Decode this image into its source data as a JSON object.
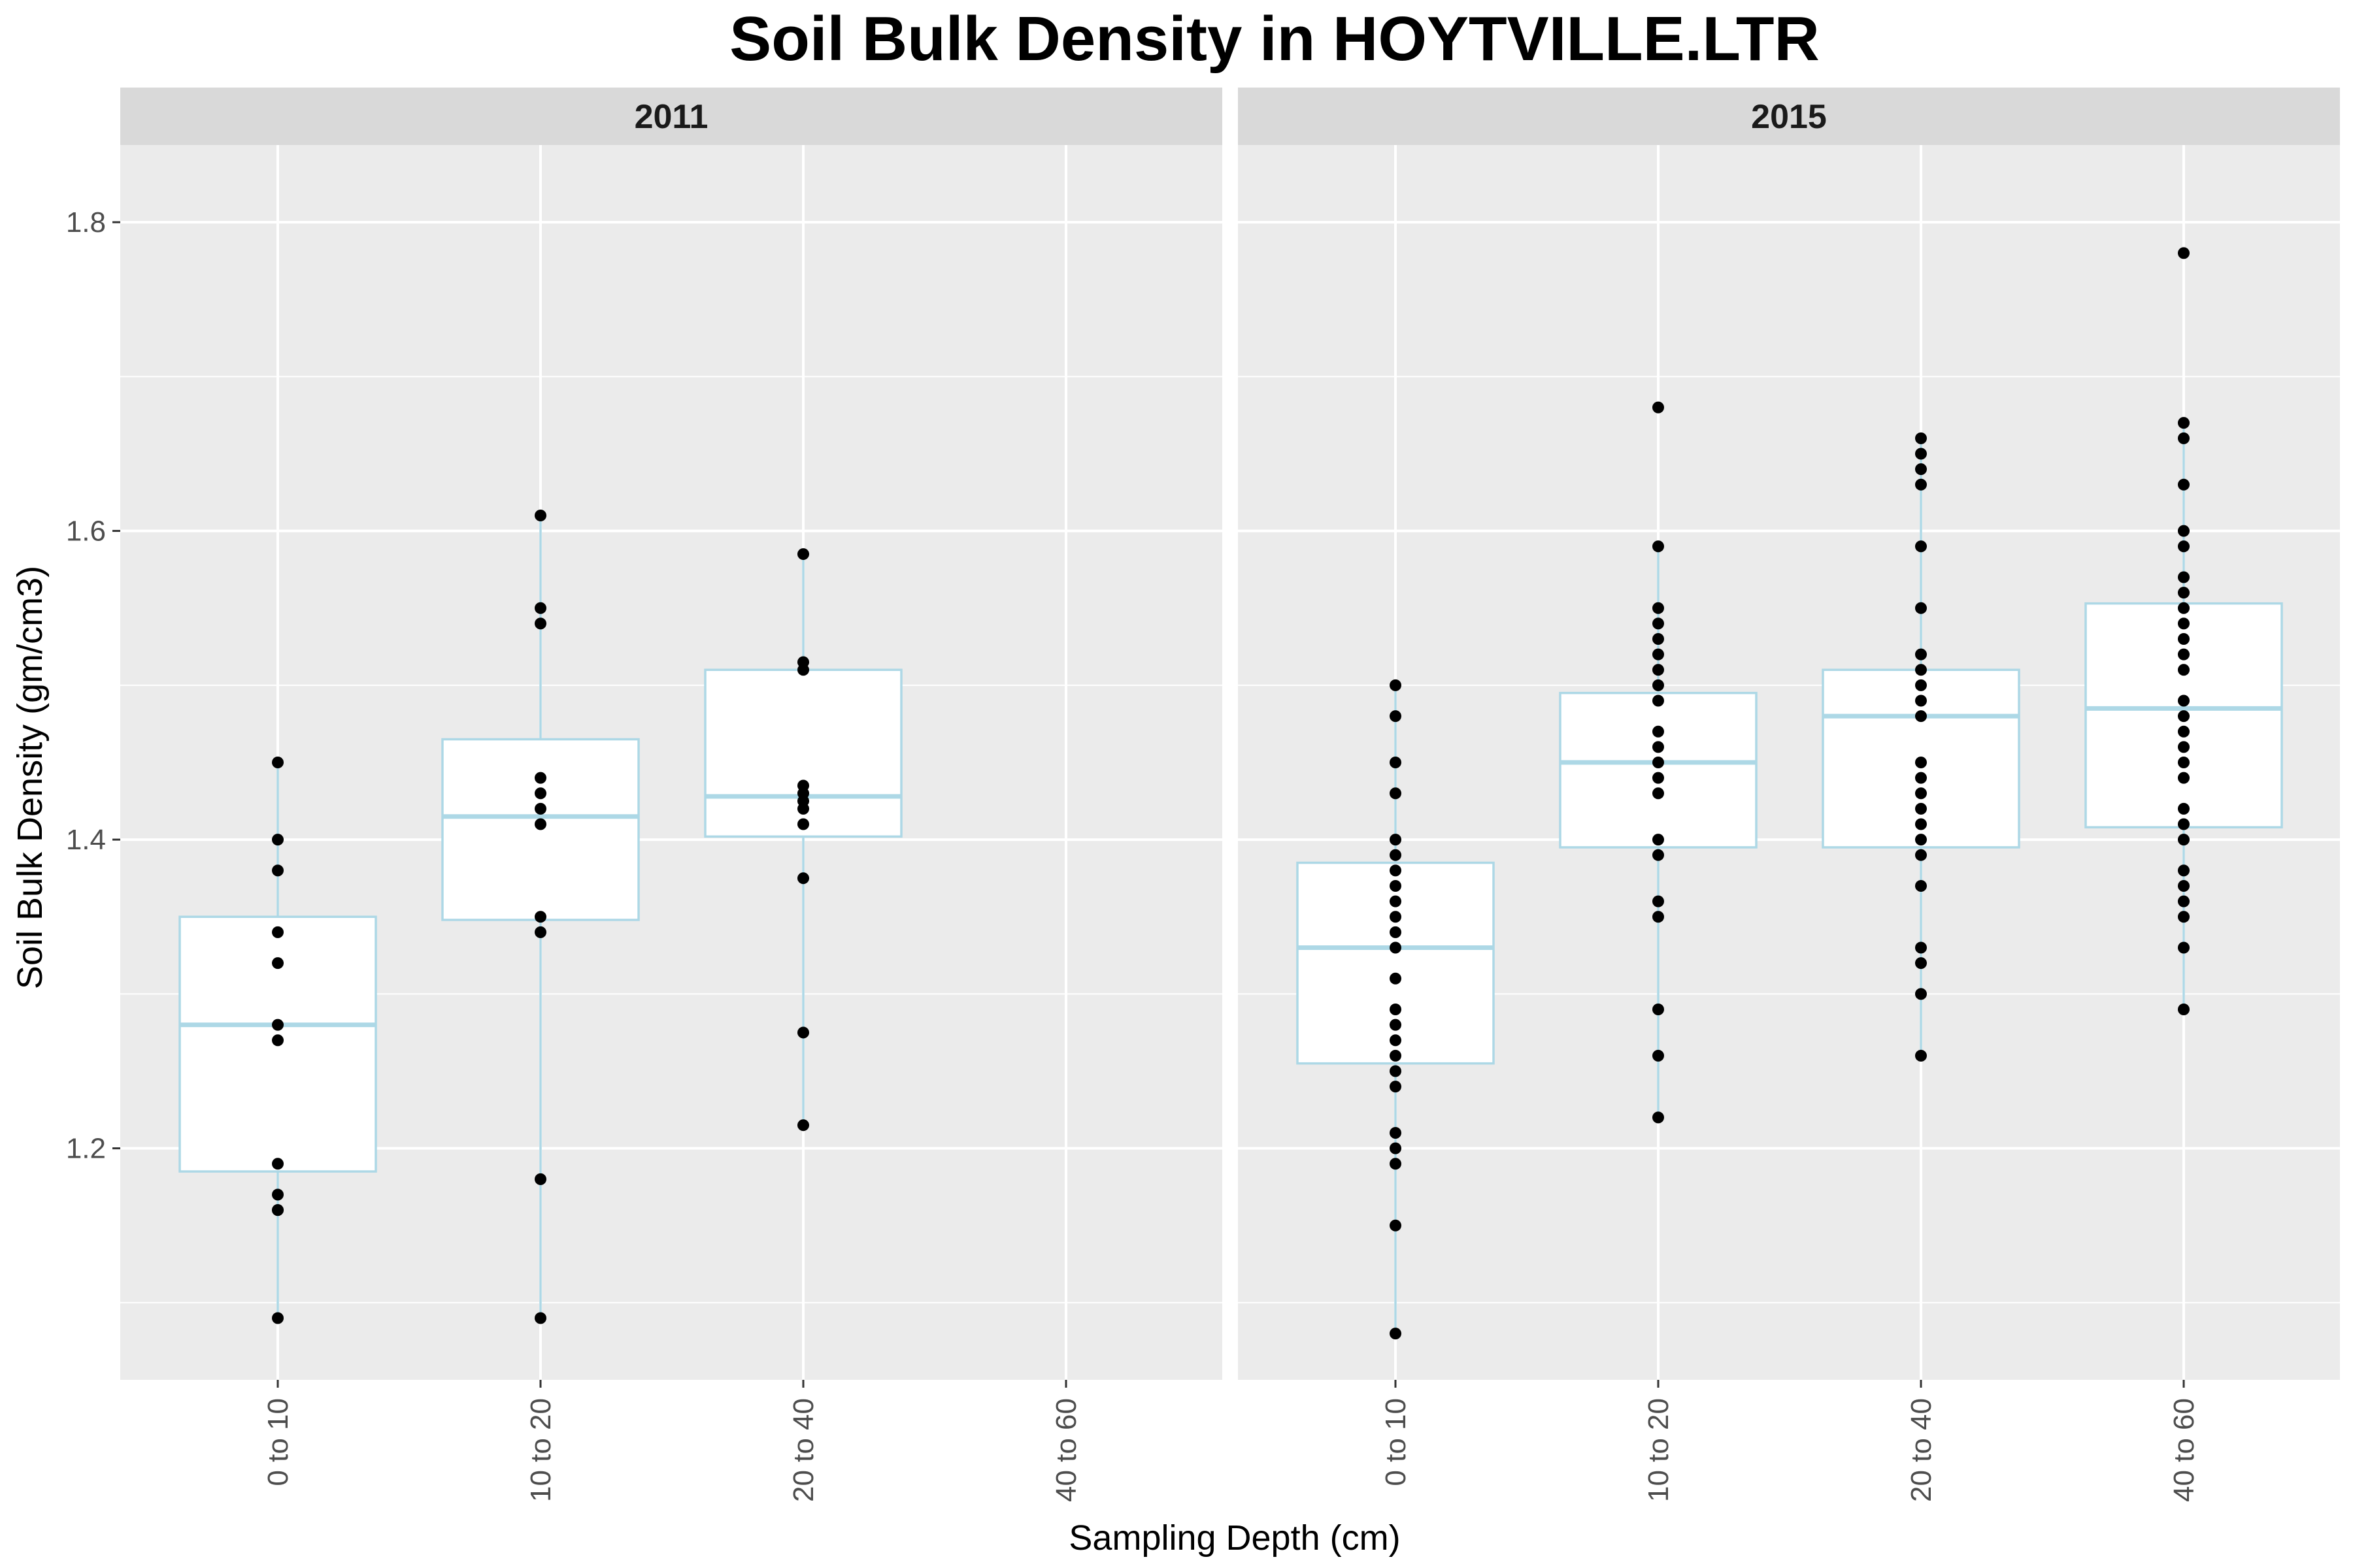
{
  "chart_data": {
    "type": "box",
    "title": "Soil Bulk Density in HOYTVILLE.LTR",
    "xlabel": "Sampling Depth (cm)",
    "ylabel": "Soil Bulk Density (gm/cm3)",
    "ylim": [
      1.05,
      1.85
    ],
    "yticks": [
      1.2,
      1.4,
      1.6,
      1.8
    ],
    "ytick_labels": [
      "1.2",
      "1.4",
      "1.6",
      "1.8"
    ],
    "categories": [
      "0 to 10",
      "10 to 20",
      "20 to 40",
      "40 to 60"
    ],
    "grid": true,
    "colors": {
      "panel_bg": "#ebebeb",
      "strip_bg": "#d9d9d9",
      "grid": "#ffffff",
      "box_stroke": "#add8e6",
      "box_fill": "#ffffff",
      "point": "#000000"
    },
    "panels": [
      {
        "label": "2011",
        "groups": [
          {
            "category": "0 to 10",
            "q1": 1.185,
            "median": 1.28,
            "q3": 1.35,
            "whisker_low": 1.09,
            "whisker_high": 1.45,
            "points": [
              1.09,
              1.16,
              1.16,
              1.17,
              1.19,
              1.27,
              1.28,
              1.32,
              1.34,
              1.38,
              1.4,
              1.45
            ]
          },
          {
            "category": "10 to 20",
            "q1": 1.348,
            "median": 1.415,
            "q3": 1.465,
            "whisker_low": 1.09,
            "whisker_high": 1.61,
            "points": [
              1.09,
              1.18,
              1.34,
              1.35,
              1.41,
              1.42,
              1.43,
              1.44,
              1.54,
              1.55,
              1.61
            ]
          },
          {
            "category": "20 to 40",
            "q1": 1.402,
            "median": 1.428,
            "q3": 1.51,
            "whisker_low": 1.215,
            "whisker_high": 1.585,
            "points": [
              1.215,
              1.275,
              1.375,
              1.41,
              1.42,
              1.425,
              1.43,
              1.435,
              1.51,
              1.515,
              1.585
            ]
          }
        ]
      },
      {
        "label": "2015",
        "groups": [
          {
            "category": "0 to 10",
            "q1": 1.255,
            "median": 1.33,
            "q3": 1.385,
            "whisker_low": 1.08,
            "whisker_high": 1.5,
            "points": [
              1.08,
              1.15,
              1.19,
              1.2,
              1.21,
              1.24,
              1.25,
              1.26,
              1.27,
              1.28,
              1.29,
              1.31,
              1.33,
              1.34,
              1.35,
              1.36,
              1.37,
              1.38,
              1.39,
              1.4,
              1.43,
              1.45,
              1.48,
              1.5
            ]
          },
          {
            "category": "10 to 20",
            "q1": 1.395,
            "median": 1.45,
            "q3": 1.495,
            "whisker_low": 1.22,
            "whisker_high": 1.59,
            "points": [
              1.22,
              1.26,
              1.29,
              1.35,
              1.36,
              1.39,
              1.4,
              1.43,
              1.44,
              1.45,
              1.46,
              1.47,
              1.49,
              1.5,
              1.51,
              1.52,
              1.53,
              1.54,
              1.55,
              1.59,
              1.68
            ]
          },
          {
            "category": "20 to 40",
            "q1": 1.395,
            "median": 1.48,
            "q3": 1.51,
            "whisker_low": 1.26,
            "whisker_high": 1.66,
            "points": [
              1.26,
              1.3,
              1.32,
              1.33,
              1.37,
              1.39,
              1.4,
              1.41,
              1.42,
              1.43,
              1.44,
              1.45,
              1.48,
              1.49,
              1.5,
              1.51,
              1.52,
              1.55,
              1.59,
              1.63,
              1.64,
              1.65,
              1.66
            ]
          },
          {
            "category": "40 to 60",
            "q1": 1.408,
            "median": 1.485,
            "q3": 1.553,
            "whisker_low": 1.29,
            "whisker_high": 1.67,
            "points": [
              1.29,
              1.33,
              1.35,
              1.36,
              1.37,
              1.38,
              1.4,
              1.41,
              1.42,
              1.44,
              1.45,
              1.46,
              1.47,
              1.48,
              1.49,
              1.51,
              1.52,
              1.53,
              1.54,
              1.55,
              1.56,
              1.57,
              1.59,
              1.6,
              1.63,
              1.66,
              1.67,
              1.78
            ]
          }
        ]
      }
    ]
  }
}
